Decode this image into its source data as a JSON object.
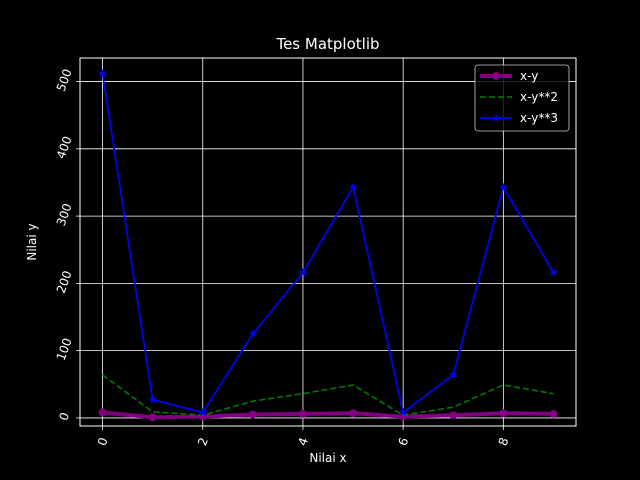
{
  "chart_data": {
    "type": "line",
    "title": "Tes Matplotlib",
    "xlabel": "Nilai x",
    "ylabel": "Nilai y",
    "xlim": [
      -0.45,
      9.45
    ],
    "ylim": [
      -12,
      535
    ],
    "xticks": [
      "0",
      "2",
      "4",
      "6",
      "8"
    ],
    "yticks": [
      "0",
      "100",
      "200",
      "300",
      "400",
      "500"
    ],
    "grid": true,
    "legend_position": "top-right",
    "x": [
      0,
      1,
      2,
      3,
      4,
      5,
      6,
      7,
      8,
      9
    ],
    "series": [
      {
        "name": "x-y",
        "color": "#800080",
        "style": "solid-thick",
        "marker": "circle",
        "values": [
          8,
          1,
          2,
          5,
          6,
          7,
          2,
          4,
          7,
          6
        ]
      },
      {
        "name": "x-y**2",
        "color": "#008000",
        "style": "dashed",
        "marker": "none",
        "values": [
          64,
          9,
          4,
          25,
          36,
          49,
          4,
          16,
          49,
          36
        ]
      },
      {
        "name": "x-y**3",
        "color": "#0000ff",
        "style": "solid",
        "marker": "star",
        "values": [
          512,
          27,
          8,
          125,
          216,
          343,
          8,
          64,
          343,
          216
        ]
      }
    ]
  }
}
